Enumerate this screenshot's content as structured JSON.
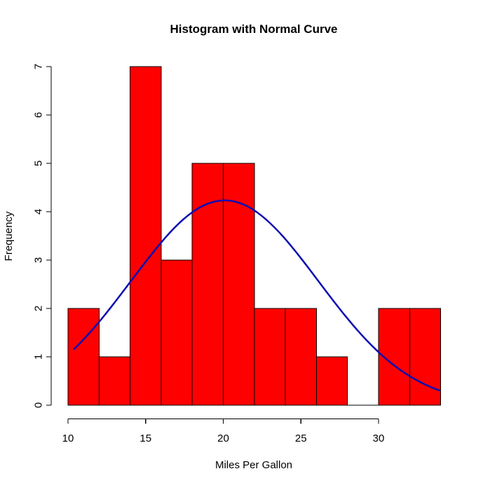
{
  "chart_data": {
    "type": "bar",
    "subtype": "histogram-with-normal-curve",
    "title": "Histogram with Normal Curve",
    "xlabel": "Miles Per Gallon",
    "ylabel": "Frequency",
    "bin_start": 10,
    "bin_width": 2,
    "bin_edges": [
      10,
      12,
      14,
      16,
      18,
      20,
      22,
      24,
      26,
      28,
      30,
      32,
      34
    ],
    "counts": [
      2,
      1,
      7,
      3,
      5,
      5,
      2,
      2,
      1,
      0,
      2,
      2
    ],
    "x_ticks": [
      10,
      15,
      20,
      25,
      30
    ],
    "y_ticks": [
      0,
      1,
      2,
      3,
      4,
      5,
      6,
      7
    ],
    "xlim": [
      10,
      34
    ],
    "ylim": [
      0,
      7
    ],
    "grid": false,
    "legend": false,
    "bar_color": "#ff0000",
    "bar_border_color": "#000000",
    "axis_color": "#000000",
    "background_color": "#ffffff",
    "curve": {
      "shape": "normal",
      "color": "#0d0db2",
      "line_width": 2.5,
      "mean": 20.09,
      "sd": 6.03,
      "scale": 64,
      "x_start": 10.4,
      "x_end": 33.9,
      "peak_y": 4.22
    }
  }
}
